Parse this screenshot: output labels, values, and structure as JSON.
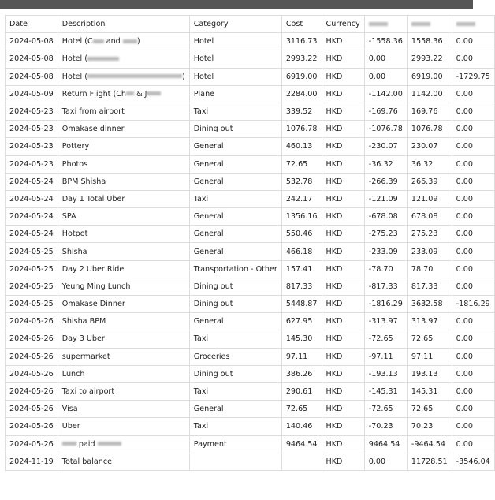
{
  "header": [
    "Date",
    "Description",
    "Category",
    "Cost",
    "Currency",
    "",
    "",
    ""
  ],
  "header_redacted": [
    false,
    false,
    false,
    false,
    false,
    true,
    true,
    true
  ],
  "rows": [
    {
      "date": "2024-05-08",
      "desc": [
        [
          "t",
          "Hotel (C"
        ],
        [
          "r",
          14
        ],
        [
          "t",
          " and "
        ],
        [
          "r",
          18
        ],
        [
          "t",
          ")"
        ]
      ],
      "category": "Hotel",
      "cost": "3116.73",
      "currency": "HKD",
      "a": "-1558.36",
      "b": "1558.36",
      "c": "0.00"
    },
    {
      "date": "2024-05-08",
      "desc": [
        [
          "t",
          "Hotel ("
        ],
        [
          "r",
          40
        ]
      ],
      "category": "Hotel",
      "cost": "2993.22",
      "currency": "HKD",
      "a": "0.00",
      "b": "2993.22",
      "c": "0.00"
    },
    {
      "date": "2024-05-08",
      "desc": [
        [
          "t",
          "Hotel ("
        ],
        [
          "r",
          120
        ],
        [
          "t",
          ")"
        ]
      ],
      "category": "Hotel",
      "cost": "6919.00",
      "currency": "HKD",
      "a": "0.00",
      "b": "6919.00",
      "c": "-1729.75"
    },
    {
      "date": "2024-05-09",
      "desc": [
        [
          "t",
          "Return Flight (Ch"
        ],
        [
          "r",
          10
        ],
        [
          "t",
          " & J"
        ],
        [
          "r",
          18
        ]
      ],
      "category": "Plane",
      "cost": "2284.00",
      "currency": "HKD",
      "a": "-1142.00",
      "b": "1142.00",
      "c": "0.00"
    },
    {
      "date": "2024-05-23",
      "desc": [
        [
          "t",
          "Taxi from airport"
        ]
      ],
      "category": "Taxi",
      "cost": "339.52",
      "currency": "HKD",
      "a": "-169.76",
      "b": "169.76",
      "c": "0.00"
    },
    {
      "date": "2024-05-23",
      "desc": [
        [
          "t",
          "Omakase dinner"
        ]
      ],
      "category": "Dining out",
      "cost": "1076.78",
      "currency": "HKD",
      "a": "-1076.78",
      "b": "1076.78",
      "c": "0.00"
    },
    {
      "date": "2024-05-23",
      "desc": [
        [
          "t",
          "Pottery"
        ]
      ],
      "category": "General",
      "cost": "460.13",
      "currency": "HKD",
      "a": "-230.07",
      "b": "230.07",
      "c": "0.00"
    },
    {
      "date": "2024-05-23",
      "desc": [
        [
          "t",
          "Photos"
        ]
      ],
      "category": "General",
      "cost": "72.65",
      "currency": "HKD",
      "a": "-36.32",
      "b": "36.32",
      "c": "0.00"
    },
    {
      "date": "2024-05-24",
      "desc": [
        [
          "t",
          "BPM Shisha"
        ]
      ],
      "category": "General",
      "cost": "532.78",
      "currency": "HKD",
      "a": "-266.39",
      "b": "266.39",
      "c": "0.00"
    },
    {
      "date": "2024-05-24",
      "desc": [
        [
          "t",
          "Day 1 Total Uber"
        ]
      ],
      "category": "Taxi",
      "cost": "242.17",
      "currency": "HKD",
      "a": "-121.09",
      "b": "121.09",
      "c": "0.00"
    },
    {
      "date": "2024-05-24",
      "desc": [
        [
          "t",
          "SPA"
        ]
      ],
      "category": "General",
      "cost": "1356.16",
      "currency": "HKD",
      "a": "-678.08",
      "b": "678.08",
      "c": "0.00"
    },
    {
      "date": "2024-05-24",
      "desc": [
        [
          "t",
          "Hotpot"
        ]
      ],
      "category": "General",
      "cost": "550.46",
      "currency": "HKD",
      "a": "-275.23",
      "b": "275.23",
      "c": "0.00"
    },
    {
      "date": "2024-05-25",
      "desc": [
        [
          "t",
          "Shisha"
        ]
      ],
      "category": "General",
      "cost": "466.18",
      "currency": "HKD",
      "a": "-233.09",
      "b": "233.09",
      "c": "0.00"
    },
    {
      "date": "2024-05-25",
      "desc": [
        [
          "t",
          "Day 2 Uber Ride"
        ]
      ],
      "category": "Transportation - Other",
      "cost": "157.41",
      "currency": "HKD",
      "a": "-78.70",
      "b": "78.70",
      "c": "0.00"
    },
    {
      "date": "2024-05-25",
      "desc": [
        [
          "t",
          "Yeung Ming Lunch"
        ]
      ],
      "category": "Dining out",
      "cost": "817.33",
      "currency": "HKD",
      "a": "-817.33",
      "b": "817.33",
      "c": "0.00"
    },
    {
      "date": "2024-05-25",
      "desc": [
        [
          "t",
          "Omakase Dinner"
        ]
      ],
      "category": "Dining out",
      "cost": "5448.87",
      "currency": "HKD",
      "a": "-1816.29",
      "b": "3632.58",
      "c": "-1816.29"
    },
    {
      "date": "2024-05-26",
      "desc": [
        [
          "t",
          "Shisha BPM"
        ]
      ],
      "category": "General",
      "cost": "627.95",
      "currency": "HKD",
      "a": "-313.97",
      "b": "313.97",
      "c": "0.00"
    },
    {
      "date": "2024-05-26",
      "desc": [
        [
          "t",
          "Day 3 Uber"
        ]
      ],
      "category": "Taxi",
      "cost": "145.30",
      "currency": "HKD",
      "a": "-72.65",
      "b": "72.65",
      "c": "0.00"
    },
    {
      "date": "2024-05-26",
      "desc": [
        [
          "t",
          "supermarket"
        ]
      ],
      "category": "Groceries",
      "cost": "97.11",
      "currency": "HKD",
      "a": "-97.11",
      "b": "97.11",
      "c": "0.00"
    },
    {
      "date": "2024-05-26",
      "desc": [
        [
          "t",
          "Lunch"
        ]
      ],
      "category": "Dining out",
      "cost": "386.26",
      "currency": "HKD",
      "a": "-193.13",
      "b": "193.13",
      "c": "0.00"
    },
    {
      "date": "2024-05-26",
      "desc": [
        [
          "t",
          "Taxi to airport"
        ]
      ],
      "category": "Taxi",
      "cost": "290.61",
      "currency": "HKD",
      "a": "-145.31",
      "b": "145.31",
      "c": "0.00"
    },
    {
      "date": "2024-05-26",
      "desc": [
        [
          "t",
          "Visa"
        ]
      ],
      "category": "General",
      "cost": "72.65",
      "currency": "HKD",
      "a": "-72.65",
      "b": "72.65",
      "c": "0.00"
    },
    {
      "date": "2024-05-26",
      "desc": [
        [
          "t",
          "Uber"
        ]
      ],
      "category": "Taxi",
      "cost": "140.46",
      "currency": "HKD",
      "a": "-70.23",
      "b": "70.23",
      "c": "0.00"
    },
    {
      "date": "2024-05-26",
      "desc": [
        [
          "r",
          18
        ],
        [
          "t",
          " paid "
        ],
        [
          "r",
          30
        ]
      ],
      "category": "Payment",
      "cost": "9464.54",
      "currency": "HKD",
      "a": "9464.54",
      "b": "-9464.54",
      "c": "0.00"
    },
    {
      "date": "2024-11-19",
      "desc": [
        [
          "t",
          "Total balance"
        ]
      ],
      "category": "",
      "cost": "",
      "currency": "HKD",
      "a": "0.00",
      "b": "11728.51",
      "c": "-3546.04"
    }
  ]
}
